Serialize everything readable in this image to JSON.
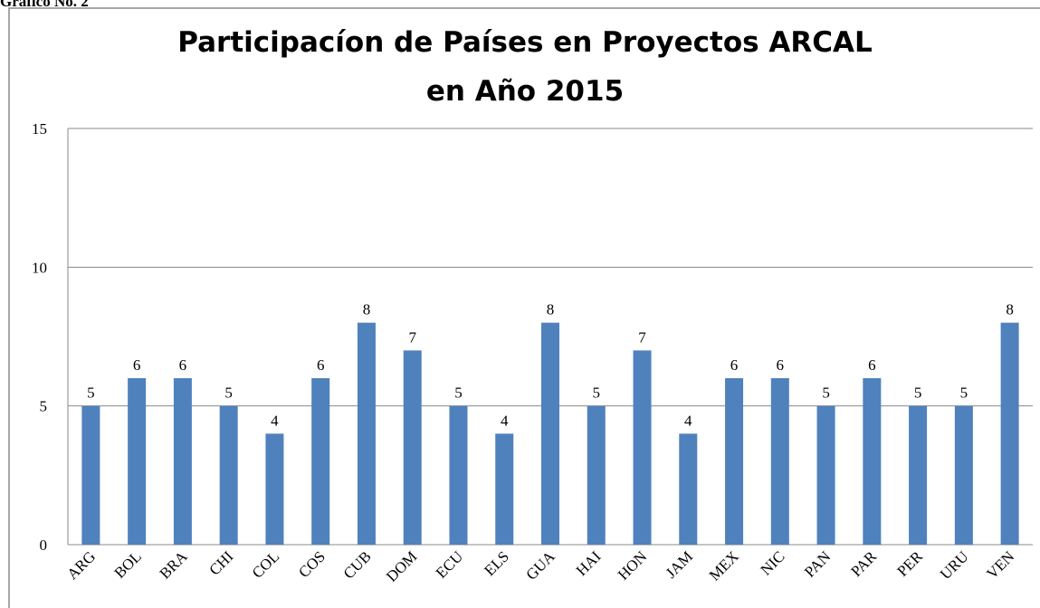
{
  "caption": "Gráfico No. 2",
  "chart_data": {
    "type": "bar",
    "title": [
      "Participacíon de Países en Proyectos ARCAL",
      "en Año 2015"
    ],
    "categories": [
      "ARG",
      "BOL",
      "BRA",
      "CHI",
      "COL",
      "COS",
      "CUB",
      "DOM",
      "ECU",
      "ELS",
      "GUA",
      "HAI",
      "HON",
      "JAM",
      "MEX",
      "NIC",
      "PAN",
      "PAR",
      "PER",
      "URU",
      "VEN"
    ],
    "values": [
      5,
      6,
      6,
      5,
      4,
      6,
      8,
      7,
      5,
      4,
      8,
      5,
      7,
      4,
      6,
      6,
      5,
      6,
      5,
      5,
      8
    ],
    "color": "#4f81bd",
    "ylim": [
      0,
      15
    ],
    "yticks": [
      0,
      5,
      10,
      15
    ],
    "grid": true,
    "data_labels": true
  }
}
